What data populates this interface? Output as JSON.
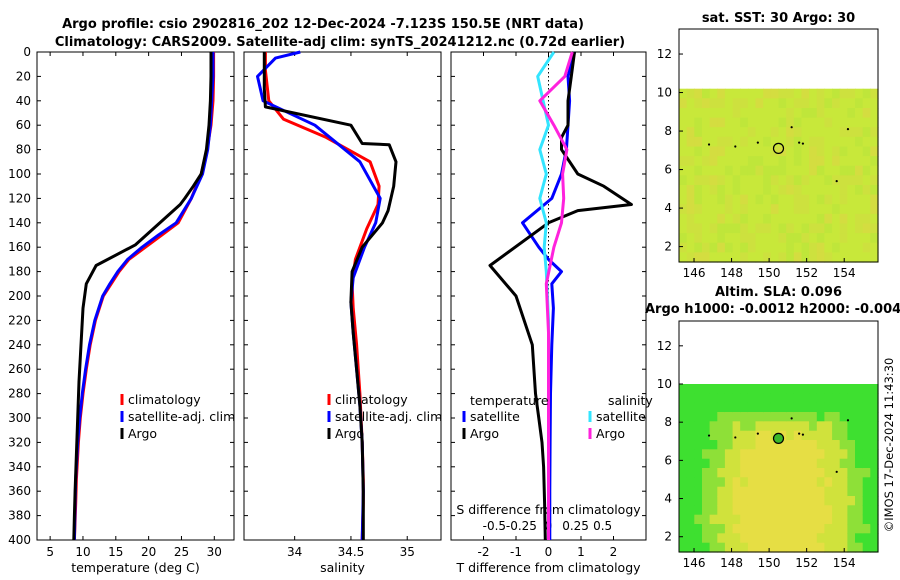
{
  "header": {
    "line1": "Argo profile: csio 2902816_202 12-Dec-2024 -7.123S 150.5E (NRT data)",
    "line2": "Climatology: CARS2009. Satellite-adj clim: synTS_20241212.nc (0.72d earlier)"
  },
  "colors": {
    "climatology": "#ff0000",
    "satellite": "#0000ff",
    "argo": "#000000",
    "salinity_sat": "#33e5ff",
    "salinity_argo": "#ff22dd"
  },
  "depth_ticks": [
    0,
    20,
    40,
    60,
    80,
    100,
    120,
    140,
    160,
    180,
    200,
    220,
    240,
    260,
    280,
    300,
    320,
    340,
    360,
    380,
    400
  ],
  "chart_data": [
    {
      "type": "line",
      "name": "temperature-profile",
      "xlabel": "temperature (deg C)",
      "ylabel": "depth",
      "xlim": [
        3,
        33
      ],
      "ylim": [
        400,
        0
      ],
      "xticks": [
        5,
        10,
        15,
        20,
        25,
        30
      ],
      "legend": {
        "position": "bottom-right",
        "entries": [
          "climatology",
          "satellite-adj. clim",
          "Argo"
        ]
      },
      "series": [
        {
          "name": "climatology",
          "x": [
            29.9,
            29.9,
            29.8,
            29.5,
            28.9,
            28,
            26.5,
            24.5,
            22,
            19.5,
            17,
            15.5,
            14.3,
            13.1,
            11.9,
            11.1,
            10.5,
            10.0,
            9.6,
            9.3,
            9.0,
            8.9,
            8.7
          ],
          "y": [
            0,
            20,
            40,
            60,
            80,
            100,
            120,
            140,
            150,
            160,
            170,
            180,
            190,
            200,
            220,
            240,
            260,
            280,
            300,
            320,
            350,
            370,
            400
          ]
        },
        {
          "name": "satellite-adj. clim",
          "x": [
            29.8,
            29.8,
            29.6,
            29.4,
            29,
            28.2,
            26.5,
            24.2,
            21.5,
            19,
            16.8,
            15.3,
            14.1,
            13,
            11.8,
            11,
            10.4,
            9.9,
            9.5,
            9.2,
            8.9,
            8.8,
            8.7
          ],
          "y": [
            0,
            20,
            40,
            60,
            80,
            100,
            120,
            140,
            150,
            160,
            170,
            180,
            190,
            200,
            220,
            240,
            260,
            280,
            300,
            320,
            350,
            370,
            400
          ]
        },
        {
          "name": "Argo",
          "x": [
            29.5,
            29.5,
            29.4,
            29.2,
            28.8,
            28,
            26.8,
            25.5,
            24.8,
            18,
            12,
            10.5,
            10,
            9.7,
            9.4,
            9.2,
            9.0,
            8.8,
            8.7,
            8.6
          ],
          "y": [
            0,
            20,
            40,
            60,
            80,
            100,
            110,
            120,
            125,
            158,
            175,
            190,
            210,
            240,
            270,
            300,
            330,
            360,
            380,
            400
          ]
        }
      ]
    },
    {
      "type": "line",
      "name": "salinity-profile",
      "xlabel": "salinity",
      "ylabel": "depth",
      "xlim": [
        33.55,
        35.3
      ],
      "ylim": [
        400,
        0
      ],
      "xticks": [
        34,
        34.5,
        35
      ],
      "xtick_labels": [
        "34",
        "34.5",
        "35"
      ],
      "legend": {
        "position": "bottom-right",
        "entries": [
          "climatology",
          "satellite-adj. clim",
          "Argo"
        ]
      },
      "series": [
        {
          "name": "climatology",
          "x": [
            33.74,
            33.74,
            33.77,
            33.9,
            34.28,
            34.67,
            34.75,
            34.74,
            34.64,
            34.54,
            34.51,
            34.52,
            34.55,
            34.58,
            34.6,
            34.61,
            34.61,
            34.6
          ],
          "y": [
            0,
            15,
            40,
            55,
            70,
            90,
            110,
            125,
            145,
            170,
            190,
            210,
            240,
            280,
            320,
            350,
            370,
            400
          ]
        },
        {
          "name": "satellite-adj. clim",
          "x": [
            34.05,
            33.83,
            33.67,
            33.72,
            34.18,
            34.58,
            34.76,
            34.72,
            34.62,
            34.52,
            34.5,
            34.52,
            34.55,
            34.58,
            34.6,
            34.61,
            34.6
          ],
          "y": [
            0,
            5,
            20,
            40,
            60,
            90,
            120,
            140,
            160,
            185,
            205,
            230,
            260,
            290,
            320,
            360,
            400
          ]
        },
        {
          "name": "Argo",
          "x": [
            33.73,
            33.73,
            33.73,
            33.74,
            34.5,
            34.6,
            34.84,
            34.9,
            34.88,
            34.83,
            34.78,
            34.6,
            34.51,
            34.5,
            34.52,
            34.55,
            34.58,
            34.6,
            34.61,
            34.61
          ],
          "y": [
            0,
            10,
            30,
            45,
            60,
            75,
            76,
            90,
            110,
            130,
            140,
            160,
            180,
            205,
            230,
            260,
            290,
            320,
            360,
            400
          ]
        }
      ]
    },
    {
      "type": "line",
      "name": "difference-profile",
      "xlabel": "T difference from climatology",
      "xlabel_top": "S difference from climatology",
      "ylabel": "depth",
      "xlim": [
        -3.0,
        3.0
      ],
      "ylim": [
        400,
        0
      ],
      "xticks": [
        -2,
        -1,
        0,
        1,
        2
      ],
      "s_ticks": [
        -0.5,
        -0.25,
        0,
        0.25,
        0.5
      ],
      "s_tick_labels": [
        "-0.5",
        "-0.25",
        "0",
        "0.25",
        "0.5"
      ],
      "legend": {
        "position": "bottom",
        "temperature_heading": "temperature",
        "salinity_heading": "salinity",
        "entries": [
          "satellite",
          "Argo",
          "satellite",
          "Argo"
        ]
      },
      "series": [
        {
          "name": "T satellite",
          "x": [
            0.8,
            0.6,
            0.65,
            0.6,
            0.55,
            0.4,
            0.1,
            -0.8,
            -0.3,
            0.0,
            0.4,
            0.1,
            0.15,
            0.1,
            0.06,
            0.05,
            0.04,
            0.04,
            0.04
          ],
          "y": [
            0,
            20,
            40,
            60,
            80,
            100,
            120,
            140,
            160,
            170,
            180,
            190,
            210,
            240,
            280,
            320,
            360,
            380,
            400
          ]
        },
        {
          "name": "T Argo",
          "x": [
            0.8,
            0.7,
            0.6,
            0.6,
            0.4,
            0.4,
            0.9,
            1.7,
            2.55,
            0.9,
            0.0,
            -1.8,
            -1.0,
            -0.5,
            -0.4,
            -0.3,
            -0.2,
            -0.15,
            -0.12,
            -0.1
          ],
          "y": [
            0,
            20,
            40,
            60,
            70,
            80,
            100,
            110,
            125,
            130,
            140,
            175,
            200,
            240,
            280,
            300,
            320,
            340,
            370,
            400
          ]
        },
        {
          "name": "S satellite",
          "x": [
            0.05,
            -0.1,
            -0.05,
            0.0,
            -0.08,
            -0.02,
            -0.08,
            -0.02,
            -0.04,
            -0.02,
            0.0,
            0.0,
            0.0,
            0.0
          ],
          "y": [
            0,
            20,
            40,
            60,
            80,
            100,
            120,
            140,
            160,
            180,
            220,
            280,
            340,
            400
          ]
        },
        {
          "name": "S Argo",
          "x": [
            0.22,
            0.15,
            -0.08,
            0.05,
            0.17,
            0.13,
            0.14,
            0.12,
            0.05,
            -0.02,
            0.0,
            0.0,
            0.0,
            0.0
          ],
          "y": [
            0,
            20,
            40,
            60,
            80,
            100,
            120,
            140,
            160,
            190,
            230,
            280,
            340,
            400
          ]
        }
      ]
    }
  ],
  "maps": [
    {
      "title": "sat. SST: 30 Argo: 30",
      "subtitle": "",
      "xticks": [
        146,
        148,
        150,
        152,
        154
      ],
      "yticks": [
        2,
        4,
        6,
        8,
        10,
        12
      ],
      "xlim": [
        145.2,
        155.8
      ],
      "ylim": [
        1.2,
        13.3
      ],
      "data_top": 10.2,
      "float_lon": 150.5,
      "float_lat": 7.1,
      "field_colors": [
        "#c8e83a",
        "#cde13e",
        "#bfe63a",
        "#d4dd40"
      ]
    },
    {
      "title": "Altim. SLA: 0.096",
      "subtitle": "Argo h1000: -0.0012 h2000: -0.004",
      "xticks": [
        146,
        148,
        150,
        152,
        154
      ],
      "yticks": [
        2,
        4,
        6,
        8,
        10,
        12
      ],
      "xlim": [
        145.2,
        155.8
      ],
      "ylim": [
        1.2,
        13.3
      ],
      "data_top": 10.0,
      "float_lon": 150.5,
      "float_lat": 7.15,
      "field_colors": [
        "#3ee030",
        "#8ee038",
        "#d0e23c",
        "#e6de44"
      ]
    }
  ],
  "side_label": "©IMOS 17-Dec-2024 11:43:30"
}
